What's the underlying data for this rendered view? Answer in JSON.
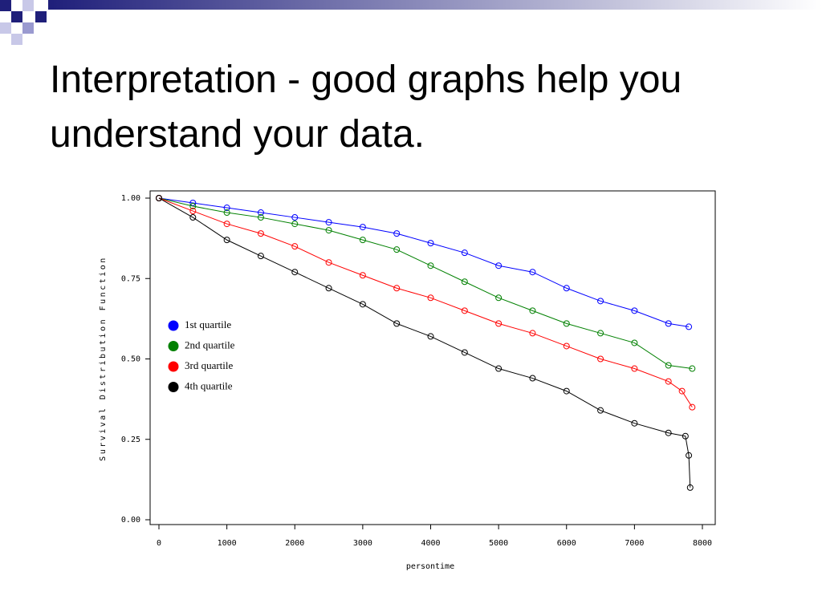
{
  "title": "Interpretation - good graphs help you understand your data.",
  "chart_data": {
    "type": "line",
    "xlabel": "persontime",
    "ylabel": "Survival Distribution Function",
    "xlim": [
      0,
      8000
    ],
    "ylim": [
      0,
      1
    ],
    "xticks": [
      0,
      1000,
      2000,
      3000,
      4000,
      5000,
      6000,
      7000,
      8000
    ],
    "yticks": [
      {
        "value": 0,
        "label": "0.00"
      },
      {
        "value": 0.25,
        "label": "0.25"
      },
      {
        "value": 0.5,
        "label": "0.50"
      },
      {
        "value": 0.75,
        "label": "0.75"
      },
      {
        "value": 1,
        "label": "1.00"
      }
    ],
    "series": [
      {
        "name": "1st quartile",
        "color": "#0000ff",
        "x": [
          0,
          500,
          1000,
          1500,
          2000,
          2500,
          3000,
          3500,
          4000,
          4500,
          5000,
          5500,
          6000,
          6500,
          7000,
          7500,
          7800
        ],
        "values": [
          1,
          0.985,
          0.97,
          0.955,
          0.94,
          0.925,
          0.91,
          0.89,
          0.86,
          0.83,
          0.79,
          0.77,
          0.72,
          0.68,
          0.65,
          0.61,
          0.6
        ]
      },
      {
        "name": "2nd quartile",
        "color": "#008000",
        "x": [
          0,
          500,
          1000,
          1500,
          2000,
          2500,
          3000,
          3500,
          4000,
          4500,
          5000,
          5500,
          6000,
          6500,
          7000,
          7500,
          7850
        ],
        "values": [
          1,
          0.975,
          0.955,
          0.94,
          0.92,
          0.9,
          0.87,
          0.84,
          0.79,
          0.74,
          0.69,
          0.65,
          0.61,
          0.58,
          0.55,
          0.48,
          0.47
        ]
      },
      {
        "name": "3rd quartile",
        "color": "#ff0000",
        "x": [
          0,
          500,
          1000,
          1500,
          2000,
          2500,
          3000,
          3500,
          4000,
          4500,
          5000,
          5500,
          6000,
          6500,
          7000,
          7500,
          7700,
          7850
        ],
        "values": [
          1,
          0.96,
          0.92,
          0.89,
          0.85,
          0.8,
          0.76,
          0.72,
          0.69,
          0.65,
          0.61,
          0.58,
          0.54,
          0.5,
          0.47,
          0.43,
          0.4,
          0.35
        ]
      },
      {
        "name": "4th quartile",
        "color": "#000000",
        "x": [
          0,
          500,
          1000,
          1500,
          2000,
          2500,
          3000,
          3500,
          4000,
          4500,
          5000,
          5500,
          6000,
          6500,
          7000,
          7500,
          7750,
          7800,
          7820
        ],
        "values": [
          1,
          0.94,
          0.87,
          0.82,
          0.77,
          0.72,
          0.67,
          0.61,
          0.57,
          0.52,
          0.47,
          0.44,
          0.4,
          0.34,
          0.3,
          0.27,
          0.26,
          0.2,
          0.1
        ]
      }
    ]
  }
}
